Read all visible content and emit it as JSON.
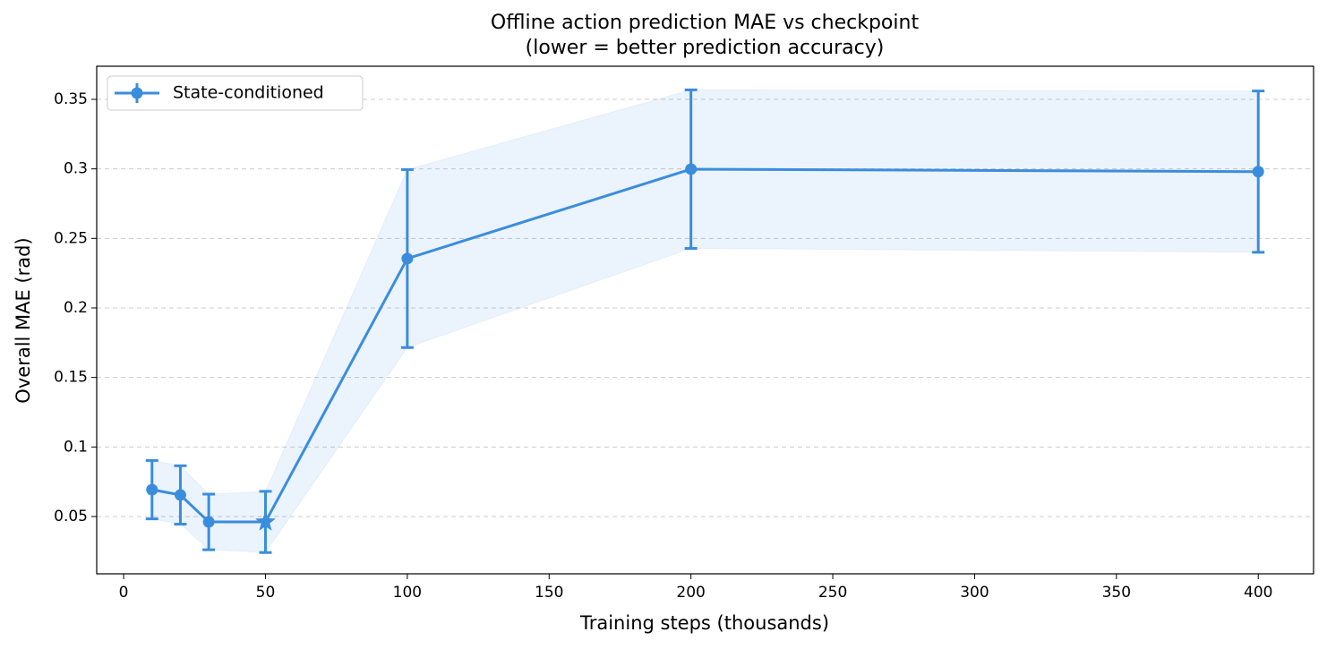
{
  "chart_data": {
    "type": "line",
    "title": "Offline action prediction MAE vs checkpoint",
    "subtitle": "(lower = better prediction accuracy)",
    "x_label": "Training steps (thousands)",
    "y_label": "Overall MAE (rad)",
    "x": [
      10,
      20,
      30,
      50,
      100,
      200,
      400
    ],
    "series": [
      {
        "name": "State-conditioned",
        "color": "#3a8ddd",
        "values": [
          0.0693,
          0.0655,
          0.0461,
          0.0461,
          0.2355,
          0.2998,
          0.298
        ],
        "errors": [
          0.021,
          0.021,
          0.02,
          0.022,
          0.064,
          0.057,
          0.058
        ],
        "markers": [
          "o",
          "o",
          "o",
          "*",
          "o",
          "o",
          "o"
        ]
      }
    ],
    "xlim": [
      -9.5,
      419.5
    ],
    "xticks": [
      0,
      50,
      100,
      150,
      200,
      250,
      300,
      350,
      400
    ],
    "ylim": [
      0.0088,
      0.3738
    ],
    "yticks": [
      0.05,
      0.1,
      0.15,
      0.2,
      0.25,
      0.3,
      0.35
    ],
    "yticks_labels": null,
    "grid": true,
    "legend": "upper left"
  }
}
